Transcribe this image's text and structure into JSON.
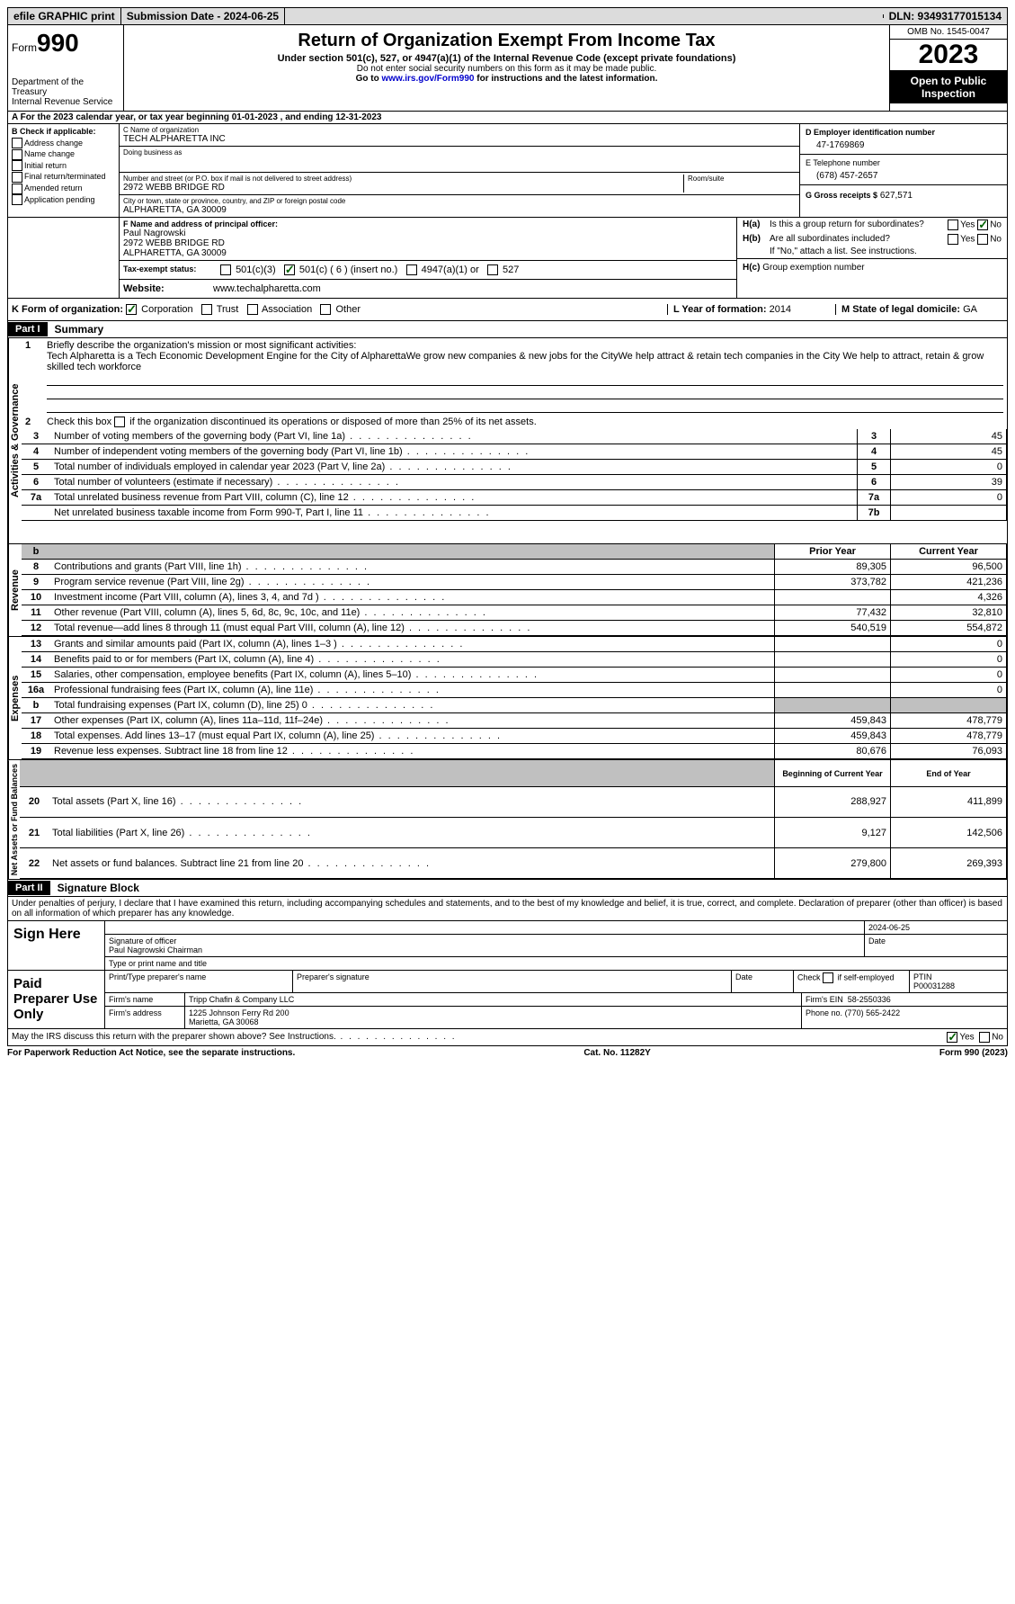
{
  "topbar": {
    "efile": "efile GRAPHIC print",
    "submission": "Submission Date - 2024-06-25",
    "dln": "DLN: 93493177015134"
  },
  "header": {
    "form_label": "Form",
    "form_number": "990",
    "title": "Return of Organization Exempt From Income Tax",
    "subtitle": "Under section 501(c), 527, or 4947(a)(1) of the Internal Revenue Code (except private foundations)",
    "note1": "Do not enter social security numbers on this form as it may be made public.",
    "note2": "Go to www.irs.gov/Form990 for instructions and the latest information.",
    "link": "www.irs.gov/Form990",
    "dept": "Department of the Treasury",
    "irs": "Internal Revenue Service",
    "omb": "OMB No. 1545-0047",
    "year": "2023",
    "inspect": "Open to Public Inspection"
  },
  "sectionA": "A For the 2023 calendar year, or tax year beginning 01-01-2023   , and ending 12-31-2023",
  "sectionB": {
    "label": "B Check if applicable:",
    "opts": [
      "Address change",
      "Name change",
      "Initial return",
      "Final return/terminated",
      "Amended return",
      "Application pending"
    ]
  },
  "sectionC": {
    "name_lbl": "C Name of organization",
    "name": "TECH ALPHARETTA INC",
    "dba_lbl": "Doing business as",
    "addr_lbl": "Number and street (or P.O. box if mail is not delivered to street address)",
    "room_lbl": "Room/suite",
    "addr": "2972 WEBB BRIDGE RD",
    "city_lbl": "City or town, state or province, country, and ZIP or foreign postal code",
    "city": "ALPHARETTA, GA  30009"
  },
  "sectionD": {
    "ein_lbl": "D Employer identification number",
    "ein": "47-1769869",
    "phone_lbl": "E Telephone number",
    "phone": "(678) 457-2657",
    "gross_lbl": "G Gross receipts $",
    "gross": "627,571"
  },
  "sectionF": {
    "lbl": "F Name and address of principal officer:",
    "name": "Paul Nagrowski",
    "addr1": "2972 WEBB BRIDGE RD",
    "addr2": "ALPHARETTA, GA  30009"
  },
  "sectionH": {
    "a": "Is this a group return for subordinates?",
    "b": "Are all subordinates included?",
    "b_note": "If \"No,\" attach a list. See instructions.",
    "c": "Group exemption number"
  },
  "sectionI": {
    "lbl": "Tax-exempt status:",
    "o1": "501(c)(3)",
    "o2": "501(c) ( 6 ) (insert no.)",
    "o3": "4947(a)(1) or",
    "o4": "527"
  },
  "sectionJ": {
    "lbl": "Website:",
    "val": "www.techalpharetta.com"
  },
  "sectionK": {
    "lbl": "K Form of organization:",
    "o1": "Corporation",
    "o2": "Trust",
    "o3": "Association",
    "o4": "Other"
  },
  "sectionL": {
    "lbl": "L Year of formation:",
    "val": "2014"
  },
  "sectionM": {
    "lbl": "M State of legal domicile:",
    "val": "GA"
  },
  "part1": {
    "hdr": "Part I",
    "title": "Summary",
    "line1_lbl": "Briefly describe the organization's mission or most significant activities:",
    "line1_txt": "Tech Alpharetta is a Tech Economic Development Engine for the City of AlpharettaWe grow new companies & new jobs for the CityWe help attract & retain tech companies in the City We help to attract, retain & grow skilled tech workforce",
    "line2": "Check this box      if the organization discontinued its operations or disposed of more than 25% of its net assets.",
    "tabs": {
      "gov": "Activities & Governance",
      "rev": "Revenue",
      "exp": "Expenses",
      "net": "Net Assets or Fund Balances"
    },
    "col_prior": "Prior Year",
    "col_current": "Current Year",
    "col_boy": "Beginning of Current Year",
    "col_eoy": "End of Year",
    "gov_lines": [
      {
        "n": "3",
        "d": "Number of voting members of the governing body (Part VI, line 1a)",
        "box": "3",
        "v": "45"
      },
      {
        "n": "4",
        "d": "Number of independent voting members of the governing body (Part VI, line 1b)",
        "box": "4",
        "v": "45"
      },
      {
        "n": "5",
        "d": "Total number of individuals employed in calendar year 2023 (Part V, line 2a)",
        "box": "5",
        "v": "0"
      },
      {
        "n": "6",
        "d": "Total number of volunteers (estimate if necessary)",
        "box": "6",
        "v": "39"
      },
      {
        "n": "7a",
        "d": "Total unrelated business revenue from Part VIII, column (C), line 12",
        "box": "7a",
        "v": "0"
      },
      {
        "n": "",
        "d": "Net unrelated business taxable income from Form 990-T, Part I, line 11",
        "box": "7b",
        "v": ""
      }
    ],
    "rev_lines": [
      {
        "n": "8",
        "d": "Contributions and grants (Part VIII, line 1h)",
        "p": "89,305",
        "c": "96,500"
      },
      {
        "n": "9",
        "d": "Program service revenue (Part VIII, line 2g)",
        "p": "373,782",
        "c": "421,236"
      },
      {
        "n": "10",
        "d": "Investment income (Part VIII, column (A), lines 3, 4, and 7d )",
        "p": "",
        "c": "4,326"
      },
      {
        "n": "11",
        "d": "Other revenue (Part VIII, column (A), lines 5, 6d, 8c, 9c, 10c, and 11e)",
        "p": "77,432",
        "c": "32,810"
      },
      {
        "n": "12",
        "d": "Total revenue—add lines 8 through 11 (must equal Part VIII, column (A), line 12)",
        "p": "540,519",
        "c": "554,872"
      }
    ],
    "exp_lines": [
      {
        "n": "13",
        "d": "Grants and similar amounts paid (Part IX, column (A), lines 1–3 )",
        "p": "",
        "c": "0"
      },
      {
        "n": "14",
        "d": "Benefits paid to or for members (Part IX, column (A), line 4)",
        "p": "",
        "c": "0"
      },
      {
        "n": "15",
        "d": "Salaries, other compensation, employee benefits (Part IX, column (A), lines 5–10)",
        "p": "",
        "c": "0"
      },
      {
        "n": "16a",
        "d": "Professional fundraising fees (Part IX, column (A), line 11e)",
        "p": "",
        "c": "0"
      },
      {
        "n": "b",
        "d": "Total fundraising expenses (Part IX, column (D), line 25) 0",
        "p": "shade",
        "c": "shade"
      },
      {
        "n": "17",
        "d": "Other expenses (Part IX, column (A), lines 11a–11d, 11f–24e)",
        "p": "459,843",
        "c": "478,779"
      },
      {
        "n": "18",
        "d": "Total expenses. Add lines 13–17 (must equal Part IX, column (A), line 25)",
        "p": "459,843",
        "c": "478,779"
      },
      {
        "n": "19",
        "d": "Revenue less expenses. Subtract line 18 from line 12",
        "p": "80,676",
        "c": "76,093"
      }
    ],
    "net_lines": [
      {
        "n": "20",
        "d": "Total assets (Part X, line 16)",
        "p": "288,927",
        "c": "411,899"
      },
      {
        "n": "21",
        "d": "Total liabilities (Part X, line 26)",
        "p": "9,127",
        "c": "142,506"
      },
      {
        "n": "22",
        "d": "Net assets or fund balances. Subtract line 21 from line 20",
        "p": "279,800",
        "c": "269,393"
      }
    ]
  },
  "part2": {
    "hdr": "Part II",
    "title": "Signature Block",
    "decl": "Under penalties of perjury, I declare that I have examined this return, including accompanying schedules and statements, and to the best of my knowledge and belief, it is true, correct, and complete. Declaration of preparer (other than officer) is based on all information of which preparer has any knowledge.",
    "sign_here": "Sign Here",
    "sig_date": "2024-06-25",
    "sig_lbl": "Signature of officer",
    "sig_name": "Paul Nagrowski Chairman",
    "sig_type_lbl": "Type or print name and title",
    "paid": "Paid Preparer Use Only",
    "prep_name_lbl": "Print/Type preparer's name",
    "prep_sig_lbl": "Preparer's signature",
    "date_lbl": "Date",
    "check_lbl": "Check       if self-employed",
    "ptin_lbl": "PTIN",
    "ptin": "P00031288",
    "firm_name_lbl": "Firm's name",
    "firm_name": "Tripp Chafin & Company LLC",
    "firm_ein_lbl": "Firm's EIN",
    "firm_ein": "58-2550336",
    "firm_addr_lbl": "Firm's address",
    "firm_addr": "1225 Johnson Ferry Rd 200",
    "firm_city": "Marietta, GA  30068",
    "firm_phone_lbl": "Phone no.",
    "firm_phone": "(770) 565-2422",
    "discuss": "May the IRS discuss this return with the preparer shown above? See Instructions."
  },
  "footer": {
    "pra": "For Paperwork Reduction Act Notice, see the separate instructions.",
    "cat": "Cat. No. 11282Y",
    "form": "Form 990 (2023)"
  }
}
